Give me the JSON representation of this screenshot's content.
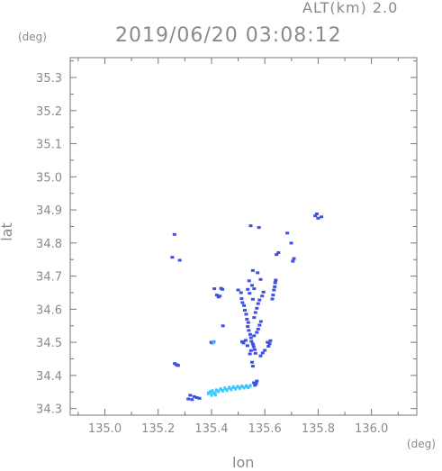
{
  "header": {
    "altitude": "ALT(km) 2.0",
    "timestamp": "2019/06/20 03:08:12",
    "y_unit": "(deg)",
    "x_unit": "(deg)"
  },
  "chart_data": {
    "type": "scatter",
    "title": "2019/06/20 03:08:12",
    "xlabel": "lon",
    "ylabel": "lat",
    "xlim": [
      134.87,
      136.17
    ],
    "ylim": [
      34.28,
      35.36
    ],
    "x_ticks": [
      "135.0",
      "135.2",
      "135.4",
      "135.6",
      "135.8",
      "136.0"
    ],
    "y_ticks": [
      "34.3",
      "34.4",
      "34.5",
      "34.6",
      "34.7",
      "34.8",
      "34.9",
      "35.0",
      "35.1",
      "35.2",
      "35.3"
    ],
    "grid": false,
    "colors": {
      "blue": "#3c50e6",
      "cyan": "#3cc8ff",
      "axis": "#777777"
    },
    "series": [
      {
        "color": "#3c50e6",
        "points": [
          [
            135.268,
            34.433
          ],
          [
            135.272,
            34.431
          ],
          [
            135.275,
            34.43
          ],
          [
            135.262,
            34.436
          ],
          [
            135.32,
            34.34
          ],
          [
            135.335,
            34.336
          ],
          [
            135.345,
            34.333
          ],
          [
            135.355,
            34.331
          ],
          [
            135.313,
            34.329
          ],
          [
            135.327,
            34.327
          ],
          [
            135.399,
            34.5
          ],
          [
            135.404,
            34.498
          ],
          [
            135.408,
            34.502
          ],
          [
            135.42,
            34.643
          ],
          [
            135.426,
            34.637
          ],
          [
            135.431,
            34.64
          ],
          [
            135.411,
            34.662
          ],
          [
            135.436,
            34.663
          ],
          [
            135.441,
            34.66
          ],
          [
            135.443,
            34.55
          ],
          [
            135.5,
            34.658
          ],
          [
            135.511,
            34.65
          ],
          [
            135.513,
            34.632
          ],
          [
            135.516,
            34.62
          ],
          [
            135.522,
            34.611
          ],
          [
            135.525,
            34.597
          ],
          [
            135.53,
            34.585
          ],
          [
            135.533,
            34.57
          ],
          [
            135.538,
            34.56
          ],
          [
            135.536,
            34.548
          ],
          [
            135.54,
            34.536
          ],
          [
            135.545,
            34.524
          ],
          [
            135.548,
            34.514
          ],
          [
            135.55,
            34.503
          ],
          [
            135.555,
            34.495
          ],
          [
            135.558,
            34.487
          ],
          [
            135.562,
            34.478
          ],
          [
            135.565,
            34.467
          ],
          [
            135.548,
            34.475
          ],
          [
            135.535,
            34.49
          ],
          [
            135.52,
            34.498
          ],
          [
            135.515,
            34.502
          ],
          [
            135.528,
            34.506
          ],
          [
            135.56,
            34.52
          ],
          [
            135.57,
            34.53
          ],
          [
            135.575,
            34.54
          ],
          [
            135.58,
            34.552
          ],
          [
            135.585,
            34.563
          ],
          [
            135.56,
            34.575
          ],
          [
            135.565,
            34.59
          ],
          [
            135.57,
            34.603
          ],
          [
            135.575,
            34.617
          ],
          [
            135.58,
            34.628
          ],
          [
            135.555,
            34.63
          ],
          [
            135.59,
            34.64
          ],
          [
            135.595,
            34.652
          ],
          [
            135.552,
            34.672
          ],
          [
            135.56,
            34.662
          ],
          [
            135.541,
            34.686
          ],
          [
            135.61,
            34.5
          ],
          [
            135.614,
            34.488
          ],
          [
            135.618,
            34.496
          ],
          [
            135.621,
            34.505
          ],
          [
            135.6,
            34.476
          ],
          [
            135.592,
            34.468
          ],
          [
            135.584,
            34.459
          ],
          [
            135.544,
            34.465
          ],
          [
            135.552,
            34.44
          ],
          [
            135.555,
            34.428
          ],
          [
            135.559,
            34.378
          ],
          [
            135.563,
            34.37
          ],
          [
            135.567,
            34.375
          ],
          [
            135.57,
            34.383
          ],
          [
            135.628,
            34.631
          ],
          [
            135.631,
            34.643
          ],
          [
            135.634,
            34.658
          ],
          [
            135.637,
            34.668
          ],
          [
            135.639,
            34.68
          ],
          [
            135.641,
            34.688
          ],
          [
            135.543,
            34.648
          ],
          [
            135.536,
            34.66
          ],
          [
            135.584,
            34.69
          ],
          [
            135.573,
            34.71
          ],
          [
            135.555,
            34.717
          ],
          [
            135.547,
            34.852
          ],
          [
            135.578,
            34.847
          ],
          [
            135.684,
            34.83
          ],
          [
            135.699,
            34.8
          ],
          [
            135.709,
            34.753
          ],
          [
            135.705,
            34.745
          ],
          [
            135.651,
            34.771
          ],
          [
            135.644,
            34.765
          ],
          [
            135.261,
            34.826
          ],
          [
            135.253,
            34.757
          ],
          [
            135.281,
            34.748
          ],
          [
            135.789,
            34.882
          ],
          [
            135.8,
            34.875
          ],
          [
            135.812,
            34.879
          ],
          [
            135.795,
            34.888
          ]
        ]
      },
      {
        "color": "#3cc8ff",
        "points": [
          [
            135.395,
            34.35
          ],
          [
            135.403,
            34.353
          ],
          [
            135.41,
            34.347
          ],
          [
            135.418,
            34.355
          ],
          [
            135.426,
            34.352
          ],
          [
            135.434,
            34.359
          ],
          [
            135.442,
            34.354
          ],
          [
            135.45,
            34.361
          ],
          [
            135.458,
            34.356
          ],
          [
            135.466,
            34.363
          ],
          [
            135.474,
            34.358
          ],
          [
            135.482,
            34.365
          ],
          [
            135.49,
            34.36
          ],
          [
            135.498,
            34.366
          ],
          [
            135.506,
            34.362
          ],
          [
            135.514,
            34.367
          ],
          [
            135.522,
            34.363
          ],
          [
            135.53,
            34.368
          ],
          [
            135.538,
            34.364
          ],
          [
            135.546,
            34.369
          ],
          [
            135.415,
            34.342
          ],
          [
            135.4,
            34.341
          ],
          [
            135.388,
            34.346
          ],
          [
            135.407,
            34.5
          ]
        ]
      }
    ]
  }
}
